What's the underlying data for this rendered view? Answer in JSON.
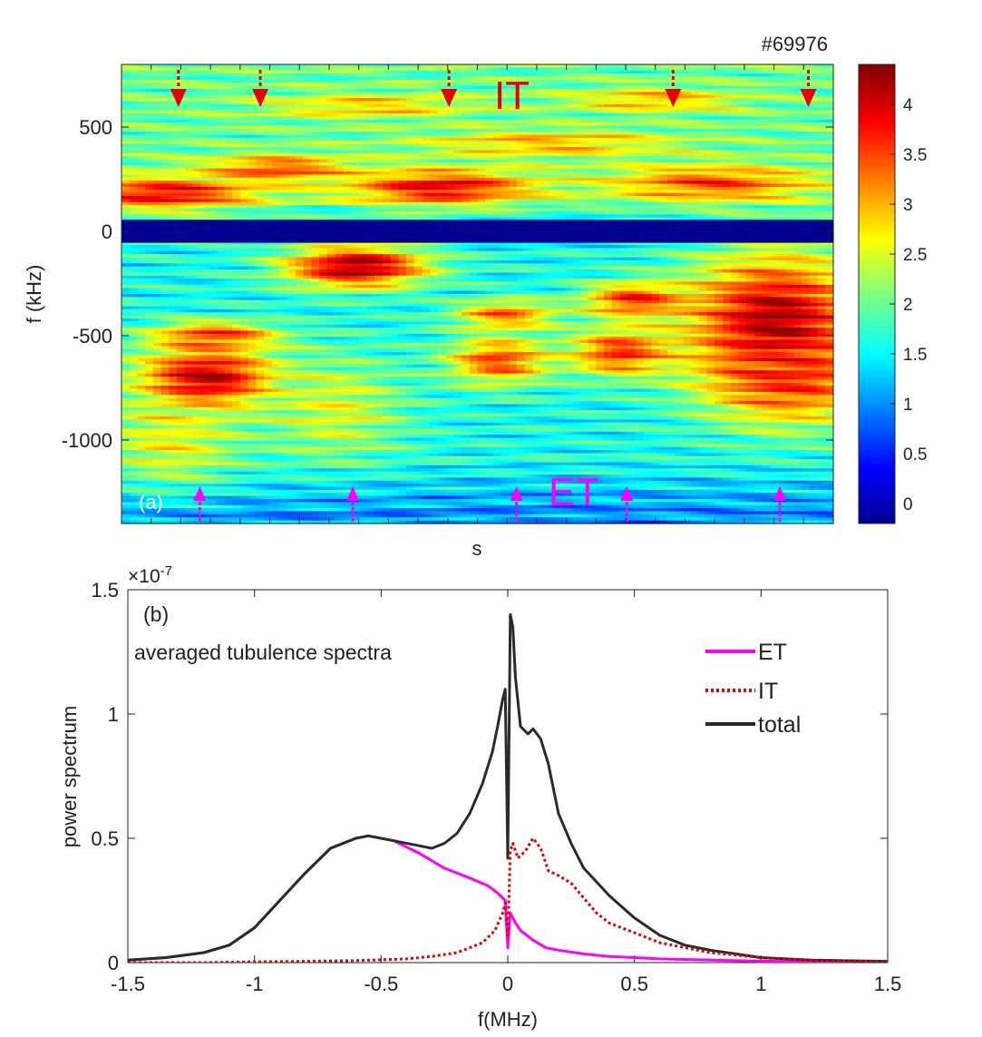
{
  "figure": {
    "shot_label": "#69976",
    "colors": {
      "et": "#ff00ff",
      "it": "#e60000",
      "total": "#2a2a2a",
      "band_zero": "#00008f"
    }
  },
  "chart_data": [
    {
      "id": "a",
      "type": "heatmap",
      "panel_label": "(a)",
      "xlabel": "s",
      "ylabel": "f (kHz)",
      "ylim": [
        -1400,
        800
      ],
      "yticks": [
        500,
        0,
        -500,
        -1000
      ],
      "ytick_labels": [
        "500",
        "0",
        "-500",
        "-1000"
      ],
      "colorbar": {
        "range": [
          -0.2,
          4.4
        ],
        "ticks": [
          4,
          3.5,
          3,
          2.5,
          2,
          1.5,
          1,
          0.5,
          0
        ],
        "labels": [
          "4",
          "3.5",
          "3",
          "2.5",
          "2",
          "1.5",
          "1",
          "0.5",
          "0"
        ]
      },
      "annotations": {
        "it_label": "IT",
        "et_label": "ET",
        "it_arrow_positions": [
          0.08,
          0.195,
          0.46,
          0.775,
          0.965
        ],
        "et_arrow_positions": [
          0.11,
          0.325,
          0.555,
          0.71,
          0.925
        ]
      },
      "features": [
        {
          "x": 0.12,
          "f": -700,
          "value": 4.1,
          "wx": 0.07,
          "wf": 110
        },
        {
          "x": 0.07,
          "f": -1000,
          "value": 2.6,
          "wx": 0.07,
          "wf": 170
        },
        {
          "x": 0.13,
          "f": -500,
          "value": 3.6,
          "wx": 0.06,
          "wf": 45
        },
        {
          "x": 0.33,
          "f": -170,
          "value": 4.3,
          "wx": 0.07,
          "wf": 70
        },
        {
          "x": 0.3,
          "f": -850,
          "value": 2.5,
          "wx": 0.07,
          "wf": 180
        },
        {
          "x": 0.53,
          "f": -620,
          "value": 3.5,
          "wx": 0.05,
          "wf": 80
        },
        {
          "x": 0.54,
          "f": -400,
          "value": 3.3,
          "wx": 0.05,
          "wf": 50
        },
        {
          "x": 0.7,
          "f": -580,
          "value": 3.6,
          "wx": 0.05,
          "wf": 80
        },
        {
          "x": 0.72,
          "f": -330,
          "value": 3.6,
          "wx": 0.05,
          "wf": 60
        },
        {
          "x": 0.92,
          "f": -430,
          "value": 4.2,
          "wx": 0.09,
          "wf": 230
        },
        {
          "x": 0.94,
          "f": -700,
          "value": 3.6,
          "wx": 0.08,
          "wf": 150
        },
        {
          "x": 0.06,
          "f": 180,
          "value": 3.9,
          "wx": 0.09,
          "wf": 55
        },
        {
          "x": 0.45,
          "f": 210,
          "value": 3.9,
          "wx": 0.09,
          "wf": 60
        },
        {
          "x": 0.22,
          "f": 300,
          "value": 3.5,
          "wx": 0.07,
          "wf": 45
        },
        {
          "x": 0.83,
          "f": 230,
          "value": 3.5,
          "wx": 0.1,
          "wf": 60
        },
        {
          "x": 0.6,
          "f": 420,
          "value": 3.0,
          "wx": 0.12,
          "wf": 45
        },
        {
          "x": 0.35,
          "f": 600,
          "value": 2.9,
          "wx": 0.1,
          "wf": 40
        },
        {
          "x": 0.75,
          "f": 630,
          "value": 3.0,
          "wx": 0.08,
          "wf": 40
        }
      ]
    },
    {
      "id": "b",
      "type": "line",
      "panel_label": "(b)",
      "title": "averaged tubulence spectra",
      "xlabel": "f(MHz)",
      "ylabel": "power spectrum",
      "y_exponent_base": "×10",
      "y_exponent_power": "-7",
      "xlim": [
        -1.5,
        1.5
      ],
      "ylim": [
        0,
        1.5
      ],
      "xticks": [
        -1.5,
        -1,
        -0.5,
        0,
        0.5,
        1,
        1.5
      ],
      "xtick_labels": [
        "-1.5",
        "-1",
        "-0.5",
        "0",
        "0.5",
        "1",
        "1.5"
      ],
      "yticks": [
        0,
        0.5,
        1,
        1.5
      ],
      "ytick_labels": [
        "0",
        "0.5",
        "1",
        "1.5"
      ],
      "series": [
        {
          "name": "ET",
          "style": "solid",
          "x": [
            -1.5,
            -1.35,
            -1.2,
            -1.1,
            -1.0,
            -0.9,
            -0.8,
            -0.7,
            -0.6,
            -0.55,
            -0.45,
            -0.35,
            -0.25,
            -0.15,
            -0.08,
            -0.04,
            -0.02,
            -0.01,
            0.0,
            0.01,
            0.02,
            0.03,
            0.05,
            0.1,
            0.15,
            0.2,
            0.3,
            0.4,
            0.5,
            0.6,
            0.8,
            1.0,
            1.5
          ],
          "y": [
            0.01,
            0.02,
            0.04,
            0.07,
            0.14,
            0.25,
            0.36,
            0.46,
            0.5,
            0.51,
            0.49,
            0.44,
            0.38,
            0.34,
            0.31,
            0.28,
            0.26,
            0.25,
            0.06,
            0.2,
            0.18,
            0.16,
            0.13,
            0.09,
            0.06,
            0.05,
            0.035,
            0.025,
            0.02,
            0.015,
            0.01,
            0.006,
            0.003
          ]
        },
        {
          "name": "IT",
          "style": "dotted",
          "x": [
            -1.5,
            -1.2,
            -1.0,
            -0.8,
            -0.6,
            -0.4,
            -0.3,
            -0.2,
            -0.1,
            -0.05,
            -0.02,
            -0.01,
            0.0,
            0.01,
            0.02,
            0.04,
            0.07,
            0.1,
            0.13,
            0.16,
            0.2,
            0.25,
            0.3,
            0.35,
            0.4,
            0.5,
            0.6,
            0.7,
            0.8,
            1.0,
            1.2,
            1.5
          ],
          "y": [
            0.0,
            0.0,
            0.003,
            0.005,
            0.008,
            0.015,
            0.025,
            0.04,
            0.08,
            0.13,
            0.2,
            0.24,
            0.1,
            0.45,
            0.48,
            0.42,
            0.45,
            0.5,
            0.46,
            0.37,
            0.35,
            0.32,
            0.26,
            0.2,
            0.16,
            0.12,
            0.08,
            0.06,
            0.04,
            0.02,
            0.01,
            0.003
          ]
        },
        {
          "name": "total",
          "style": "solid",
          "x": [
            -1.5,
            -1.35,
            -1.2,
            -1.1,
            -1.0,
            -0.9,
            -0.8,
            -0.7,
            -0.6,
            -0.55,
            -0.45,
            -0.35,
            -0.3,
            -0.25,
            -0.2,
            -0.15,
            -0.1,
            -0.06,
            -0.04,
            -0.02,
            -0.01,
            0.0,
            0.01,
            0.02,
            0.03,
            0.05,
            0.08,
            0.1,
            0.13,
            0.16,
            0.2,
            0.25,
            0.3,
            0.4,
            0.5,
            0.6,
            0.7,
            0.8,
            1.0,
            1.2,
            1.5
          ],
          "y": [
            0.01,
            0.02,
            0.04,
            0.07,
            0.14,
            0.25,
            0.36,
            0.46,
            0.5,
            0.51,
            0.49,
            0.47,
            0.46,
            0.48,
            0.52,
            0.6,
            0.72,
            0.85,
            0.95,
            1.06,
            1.1,
            0.42,
            1.4,
            1.35,
            1.15,
            0.95,
            0.92,
            0.94,
            0.9,
            0.8,
            0.6,
            0.48,
            0.38,
            0.27,
            0.18,
            0.11,
            0.07,
            0.05,
            0.02,
            0.01,
            0.005
          ]
        }
      ],
      "legend": {
        "position": "top-right",
        "entries": [
          "ET",
          "IT",
          "total"
        ]
      }
    }
  ]
}
